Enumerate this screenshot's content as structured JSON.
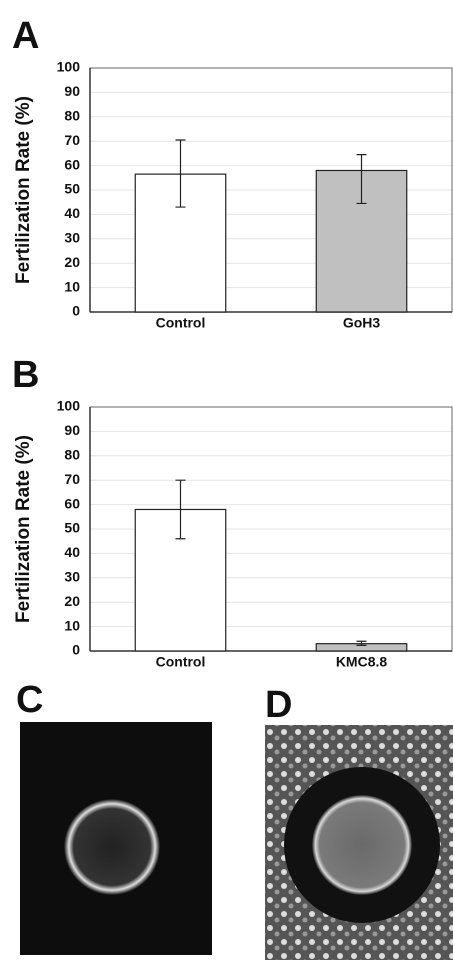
{
  "chart_data": [
    {
      "type": "bar",
      "panel": "A",
      "y_label": "Fertilization Rate (%)",
      "categories": [
        "Control",
        "GoH3"
      ],
      "series": [
        {
          "name": null,
          "colors": [
            "#ffffff",
            "#c0c0c0"
          ],
          "values": [
            56.5,
            58
          ],
          "error_low": [
            13.5,
            13.5
          ],
          "error_high": [
            14,
            6.5
          ]
        }
      ],
      "ylim": [
        0,
        100
      ],
      "yticks": [
        0,
        10,
        20,
        30,
        40,
        50,
        60,
        70,
        80,
        90,
        100
      ],
      "grid": true
    },
    {
      "type": "bar",
      "panel": "B",
      "y_label": "Fertilization Rate (%)",
      "categories": [
        "Control",
        "KMC8.8"
      ],
      "series": [
        {
          "name": null,
          "colors": [
            "#ffffff",
            "#c0c0c0"
          ],
          "values": [
            58,
            3
          ],
          "error_low": [
            12,
            0.7
          ],
          "error_high": [
            12,
            1
          ]
        }
      ],
      "ylim": [
        0,
        100
      ],
      "yticks": [
        0,
        10,
        20,
        30,
        40,
        50,
        60,
        70,
        80,
        90,
        100
      ],
      "grid": true
    }
  ],
  "images": [
    {
      "panel": "C"
    },
    {
      "panel": "D"
    }
  ]
}
